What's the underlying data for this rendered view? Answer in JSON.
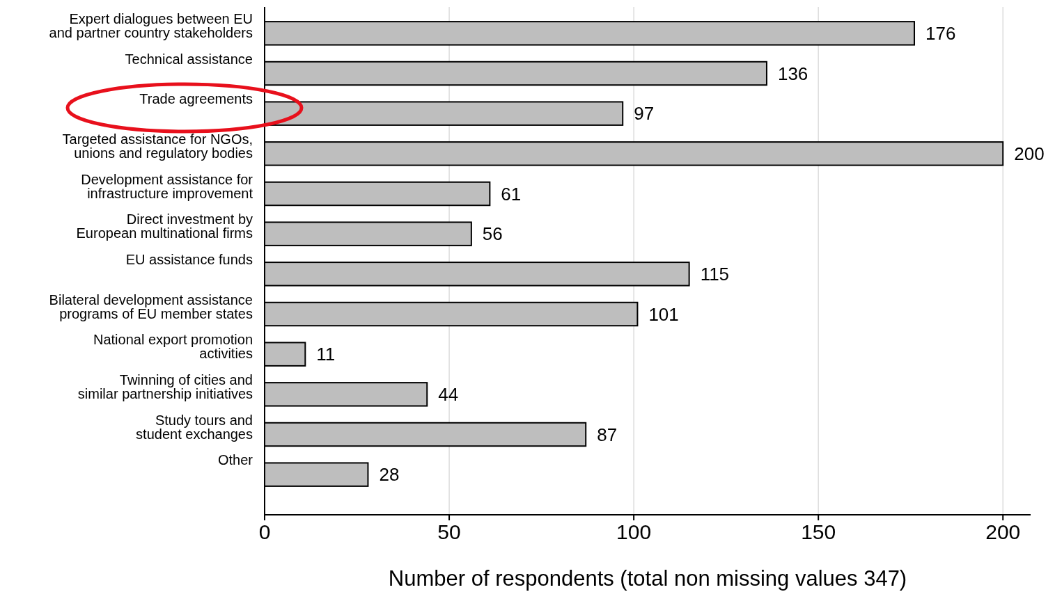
{
  "chart_data": {
    "type": "bar",
    "orientation": "horizontal",
    "categories": [
      "Expert dialogues between EU\nand partner country stakeholders",
      "Technical assistance",
      "Trade agreements",
      "Targeted assistance for NGOs,\nunions and regulatory bodies",
      "Development assistance for\ninfrastructure improvement",
      "Direct investment by\nEuropean multinational firms",
      "EU assistance funds",
      "Bilateral development assistance\nprograms of EU member states",
      "National export promotion\nactivities",
      "Twinning of cities and\nsimilar partnership initiatives",
      "Study tours and\nstudent exchanges",
      "Other"
    ],
    "values": [
      176,
      136,
      97,
      200,
      61,
      56,
      115,
      101,
      11,
      44,
      87,
      28
    ],
    "color": "#bebebe",
    "xlim": [
      0,
      207.5
    ],
    "xticks": [
      0,
      50,
      100,
      150,
      200
    ],
    "xlabel": "Number of respondents (total non missing values 347)",
    "grid": "x",
    "data_labels": true
  }
}
